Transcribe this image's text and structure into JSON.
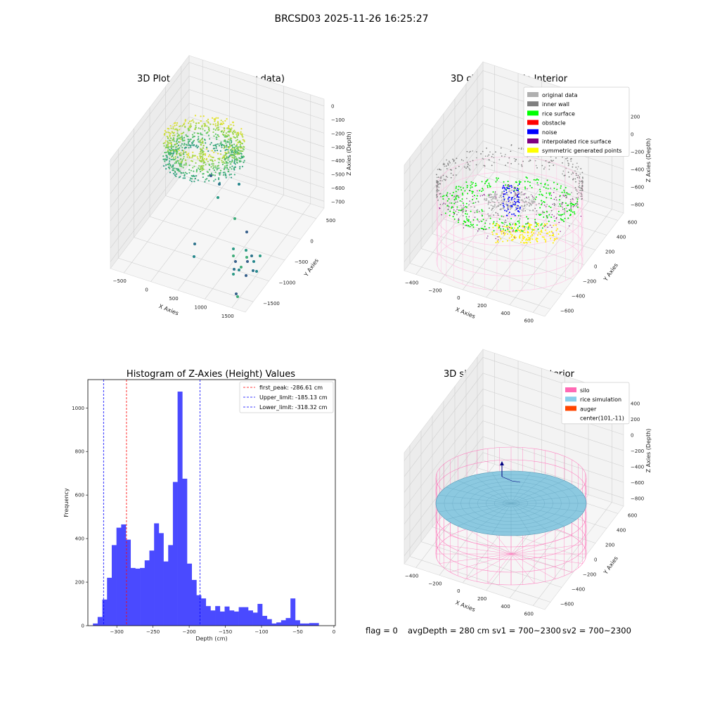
{
  "figure": {
    "suptitle": "BRCSD03 2025-11-26 16:25:27",
    "status": {
      "flag": "flag = 0",
      "avg_depth": "avgDepth = 280 cm",
      "sv1": "sv1 = 700~2300",
      "sv2": "sv2 = 700~2300"
    }
  },
  "chart_data": [
    {
      "type": "scatter",
      "projection": "3d",
      "title": "3D Plot of Silo Interior(row data)",
      "xlabel": "X Axies",
      "ylabel": "Y Axies",
      "zlabel": "Z Axies (Depth)",
      "xticks": [
        "−500",
        "0",
        "500",
        "1000",
        "1500"
      ],
      "yticks": [
        "−1500",
        "−1000",
        "−500",
        "0",
        "500"
      ],
      "zticks": [
        "0",
        "−100",
        "−200",
        "−300",
        "−400",
        "−500",
        "−600",
        "−700"
      ],
      "colormap": "viridis",
      "grid": true,
      "approx_points": {
        "dense_ring": {
          "x_range": [
            -400,
            400
          ],
          "y_range": [
            -400,
            400
          ],
          "z_range": [
            -250,
            -80
          ]
        },
        "outliers": [
          {
            "x": 150,
            "y": -200,
            "z": -400
          },
          {
            "x": 300,
            "y": -300,
            "z": -500
          },
          {
            "x": 400,
            "y": -350,
            "z": -560
          },
          {
            "x": 900,
            "y": -600,
            "z": -700
          },
          {
            "x": 1100,
            "y": -700,
            "z": -720
          },
          {
            "x": 1300,
            "y": -800,
            "z": -730
          },
          {
            "x": 1500,
            "y": -1100,
            "z": -740
          }
        ]
      }
    },
    {
      "type": "scatter",
      "projection": "3d",
      "title": "3D classify of Silo Interior",
      "xlabel": "X Axies",
      "ylabel": "Y Axies",
      "zlabel": "Z Axies (Depth)",
      "xticks": [
        "−400",
        "−200",
        "0",
        "200",
        "400",
        "600"
      ],
      "yticks": [
        "−600",
        "−400",
        "−200",
        "0",
        "200",
        "400",
        "600"
      ],
      "zticks": [
        "200",
        "0",
        "−200",
        "−400",
        "−600",
        "−800"
      ],
      "legend": "top-right",
      "grid": true,
      "series": [
        {
          "name": "original data",
          "color": "#b0b0b0"
        },
        {
          "name": "inner wall",
          "color": "#808080"
        },
        {
          "name": "rice surface",
          "color": "#00ff00"
        },
        {
          "name": "obstacle",
          "color": "#ff0000"
        },
        {
          "name": "noise",
          "color": "#0000ff"
        },
        {
          "name": "interpolated rice surface",
          "color": "#800080"
        },
        {
          "name": "symmetric generated points",
          "color": "#ffff00"
        }
      ]
    },
    {
      "type": "bar",
      "title": "Histogram of Z-Axies (Height) Values",
      "xlabel": "Depth (cm)",
      "ylabel": "Frequency",
      "xlim": [
        -340,
        2
      ],
      "ylim": [
        0,
        1130
      ],
      "xticks": [
        "−300",
        "−250",
        "−200",
        "−150",
        "−100",
        "−50",
        "0"
      ],
      "yticks": [
        "0",
        "200",
        "400",
        "600",
        "800",
        "1000"
      ],
      "bin_width": 6.5,
      "bin_start": -333,
      "values": [
        10,
        40,
        120,
        220,
        370,
        450,
        465,
        395,
        265,
        262,
        265,
        300,
        345,
        470,
        425,
        295,
        370,
        660,
        1075,
        675,
        285,
        210,
        140,
        125,
        90,
        70,
        90,
        65,
        88,
        70,
        65,
        85,
        85,
        70,
        60,
        100,
        45,
        30,
        10,
        15,
        25,
        35,
        125,
        25,
        10,
        10,
        12,
        12
      ],
      "bar_color": "#4a4aff",
      "legend": "top-right",
      "vlines": [
        {
          "name": "first_peak: -286.61 cm",
          "x": -286.61,
          "color": "#ff0000"
        },
        {
          "name": "Upper_limit: -185.13 cm",
          "x": -185.13,
          "color": "#0000ff"
        },
        {
          "name": "Lower_limit: -318.32 cm",
          "x": -318.32,
          "color": "#0000ff"
        }
      ]
    },
    {
      "type": "surface",
      "projection": "3d",
      "title": "3D simulation of Silo Interior",
      "xlabel": "X Axies",
      "ylabel": "Y Axies",
      "zlabel": "Z Axies (Depth)",
      "xticks": [
        "−400",
        "−200",
        "0",
        "200",
        "400",
        "600"
      ],
      "yticks": [
        "−600",
        "−400",
        "−200",
        "0",
        "200",
        "400",
        "600"
      ],
      "zticks": [
        "400",
        "200",
        "0",
        "−200",
        "−400",
        "−600",
        "−800"
      ],
      "legend": "top-right",
      "grid": true,
      "series": [
        {
          "name": "silo",
          "color": "#ff69b4"
        },
        {
          "name": "rice simulation",
          "color": "#87ceeb"
        },
        {
          "name": "auger",
          "color": "#ff4500"
        },
        {
          "name": "center(101,-11)",
          "color": "none"
        }
      ]
    }
  ]
}
